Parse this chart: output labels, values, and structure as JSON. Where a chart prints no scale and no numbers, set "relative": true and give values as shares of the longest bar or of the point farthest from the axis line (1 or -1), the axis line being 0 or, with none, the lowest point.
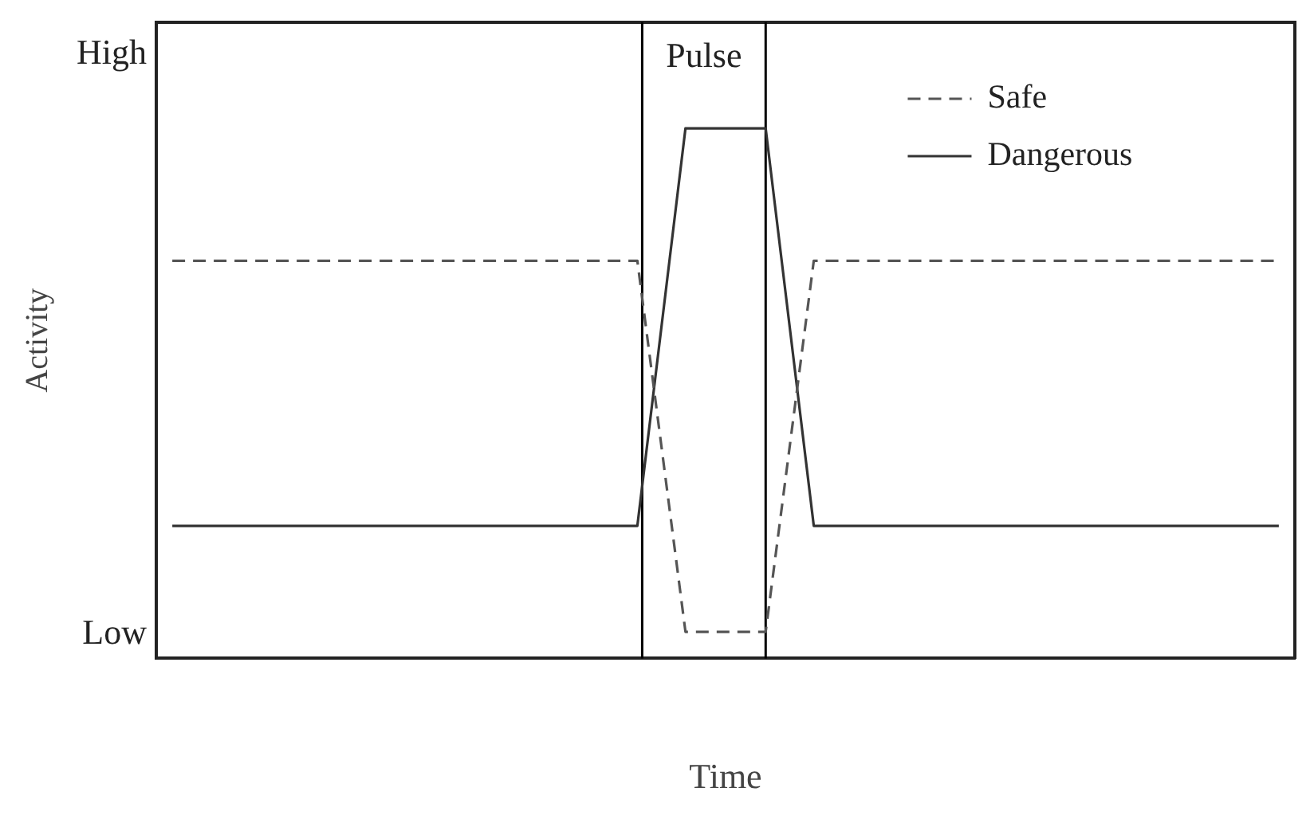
{
  "chart_data": {
    "type": "line",
    "xlabel": "Time",
    "ylabel": "Activity",
    "relative": true,
    "categories": [
      null,
      null,
      null,
      null,
      null,
      null,
      null,
      null,
      null,
      null,
      null,
      null,
      null,
      null,
      null,
      null,
      null,
      null,
      null,
      null,
      null,
      null,
      null,
      null,
      null,
      null,
      null,
      null,
      null,
      null,
      null,
      null,
      null,
      null,
      null,
      null,
      null,
      null,
      null,
      null,
      null,
      null,
      null,
      null,
      null,
      null,
      null,
      null,
      null,
      null,
      null,
      null,
      null,
      null,
      null,
      null,
      null,
      null,
      null,
      null,
      null,
      null,
      null,
      null,
      null,
      null,
      null,
      null,
      null,
      null,
      null,
      null
    ],
    "annotations": [
      "High",
      "Low",
      "Pulse"
    ],
    "grid": false,
    "legend": "top right",
    "marker": "none",
    "series": [
      {
        "name": "Safe",
        "color": "#555555",
        "line_style": "dashed",
        "values": [
          null,
          0.75,
          null,
          null,
          null,
          null,
          null,
          null,
          null,
          null,
          null,
          null,
          null,
          null,
          null,
          null,
          null,
          null,
          null,
          null,
          null,
          null,
          null,
          null,
          null,
          null,
          null,
          null,
          null,
          null,
          0.75,
          null,
          null,
          0.05,
          null,
          null,
          null,
          null,
          0.05,
          null,
          null,
          0.75,
          null,
          null,
          null,
          null,
          null,
          null,
          null,
          null,
          null,
          null,
          null,
          null,
          null,
          null,
          null,
          null,
          null,
          null,
          null,
          null,
          null,
          null,
          null,
          null,
          null,
          null,
          null,
          null,
          0.75,
          null
        ]
      },
      {
        "name": "Dangerous",
        "color": "#333333",
        "line_style": "solid",
        "values": [
          null,
          0.25,
          null,
          null,
          null,
          null,
          null,
          null,
          null,
          null,
          null,
          null,
          null,
          null,
          null,
          null,
          null,
          null,
          null,
          null,
          null,
          null,
          null,
          null,
          null,
          null,
          null,
          null,
          null,
          null,
          0.25,
          null,
          null,
          1,
          null,
          null,
          null,
          null,
          1,
          null,
          null,
          0.25,
          null,
          null,
          null,
          null,
          null,
          null,
          null,
          null,
          null,
          null,
          null,
          null,
          null,
          null,
          null,
          null,
          null,
          null,
          null,
          null,
          null,
          null,
          null,
          null,
          null,
          null,
          null,
          null,
          0.25,
          null
        ]
      }
    ]
  }
}
